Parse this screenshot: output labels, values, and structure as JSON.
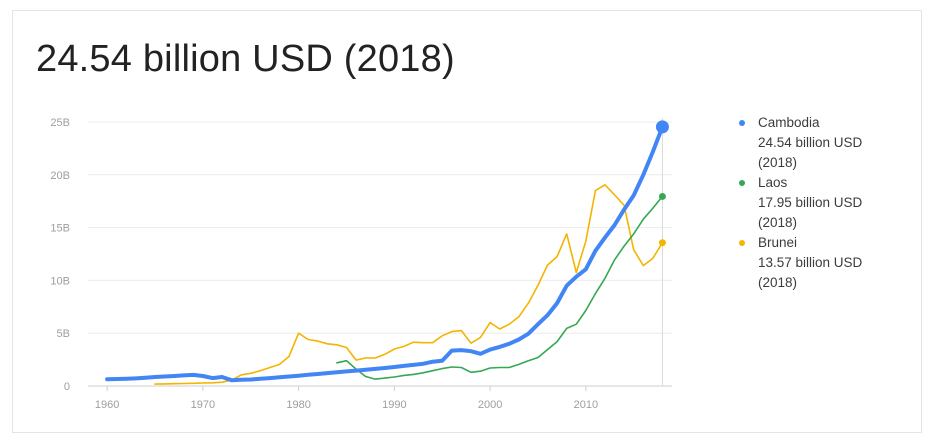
{
  "headline": "24.54 billion USD (2018)",
  "chart_data": {
    "type": "line",
    "xlim": [
      1958,
      2019
    ],
    "ylim": [
      0,
      25
    ],
    "y_unit": "billion USD",
    "grid": true,
    "legend_position": "right",
    "x_ticks": [
      1960,
      1970,
      1980,
      1990,
      2000,
      2010
    ],
    "x_tick_labels": [
      "1960",
      "1970",
      "1980",
      "1990",
      "2000",
      "2010"
    ],
    "y_ticks": [
      0,
      5,
      10,
      15,
      20,
      25
    ],
    "y_tick_labels": [
      "0",
      "5B",
      "10B",
      "15B",
      "20B",
      "25B"
    ],
    "highlight_x": 2018,
    "series": [
      {
        "name": "Cambodia",
        "color": "#4285f4",
        "legend_value": "24.54 billion USD",
        "legend_year": "(2018)",
        "x": [
          1960,
          1961,
          1962,
          1963,
          1964,
          1965,
          1966,
          1967,
          1968,
          1969,
          1970,
          1971,
          1972,
          1973,
          1974,
          1975,
          1976,
          1977,
          1978,
          1979,
          1980,
          1981,
          1982,
          1983,
          1984,
          1985,
          1986,
          1987,
          1988,
          1989,
          1990,
          1991,
          1992,
          1993,
          1994,
          1995,
          1996,
          1997,
          1998,
          1999,
          2000,
          2001,
          2002,
          2003,
          2004,
          2005,
          2006,
          2007,
          2008,
          2009,
          2010,
          2011,
          2012,
          2013,
          2014,
          2015,
          2016,
          2017,
          2018
        ],
        "values": [
          0.64,
          0.66,
          0.68,
          0.72,
          0.78,
          0.85,
          0.9,
          0.95,
          1.0,
          1.05,
          0.95,
          0.75,
          0.85,
          0.55,
          0.6,
          0.62,
          0.68,
          0.75,
          0.82,
          0.9,
          0.98,
          1.06,
          1.14,
          1.22,
          1.3,
          1.38,
          1.46,
          1.54,
          1.62,
          1.7,
          1.8,
          1.9,
          2.0,
          2.1,
          2.3,
          2.4,
          3.35,
          3.4,
          3.3,
          3.05,
          3.45,
          3.7,
          4.0,
          4.4,
          4.95,
          5.85,
          6.7,
          7.85,
          9.5,
          10.35,
          11.05,
          12.8,
          14.05,
          15.25,
          16.7,
          18.05,
          20.0,
          22.2,
          24.54
        ]
      },
      {
        "name": "Laos",
        "color": "#34a853",
        "legend_value": "17.95 billion USD",
        "legend_year": "(2018)",
        "x": [
          1984,
          1985,
          1986,
          1987,
          1988,
          1989,
          1990,
          1991,
          1992,
          1993,
          1994,
          1995,
          1996,
          1997,
          1998,
          1999,
          2000,
          2001,
          2002,
          2003,
          2004,
          2005,
          2006,
          2007,
          2008,
          2009,
          2010,
          2011,
          2012,
          2013,
          2014,
          2015,
          2016,
          2017,
          2018
        ],
        "values": [
          2.2,
          2.4,
          1.6,
          0.9,
          0.65,
          0.75,
          0.85,
          1.0,
          1.1,
          1.25,
          1.45,
          1.65,
          1.8,
          1.75,
          1.3,
          1.4,
          1.7,
          1.75,
          1.75,
          2.05,
          2.4,
          2.7,
          3.45,
          4.2,
          5.45,
          5.85,
          7.15,
          8.75,
          10.2,
          11.95,
          13.25,
          14.4,
          15.8,
          16.85,
          17.95
        ]
      },
      {
        "name": "Brunei",
        "color": "#f4b400",
        "legend_value": "13.57 billion USD",
        "legend_year": "(2018)",
        "x": [
          1965,
          1966,
          1967,
          1968,
          1969,
          1970,
          1971,
          1972,
          1973,
          1974,
          1975,
          1976,
          1977,
          1978,
          1979,
          1980,
          1981,
          1982,
          1983,
          1984,
          1985,
          1986,
          1987,
          1988,
          1989,
          1990,
          1991,
          1992,
          1993,
          1994,
          1995,
          1996,
          1997,
          1998,
          1999,
          2000,
          2001,
          2002,
          2003,
          2004,
          2005,
          2006,
          2007,
          2008,
          2009,
          2010,
          2011,
          2012,
          2013,
          2014,
          2015,
          2016,
          2017,
          2018
        ],
        "values": [
          0.18,
          0.2,
          0.22,
          0.24,
          0.26,
          0.28,
          0.3,
          0.36,
          0.55,
          1.05,
          1.2,
          1.45,
          1.75,
          2.05,
          2.8,
          5.0,
          4.4,
          4.25,
          4.0,
          3.9,
          3.65,
          2.45,
          2.65,
          2.65,
          3.0,
          3.5,
          3.75,
          4.15,
          4.1,
          4.1,
          4.75,
          5.15,
          5.25,
          4.05,
          4.6,
          6.0,
          5.4,
          5.85,
          6.55,
          7.85,
          9.55,
          11.45,
          12.25,
          14.4,
          10.75,
          13.7,
          18.5,
          19.05,
          18.1,
          17.1,
          12.9,
          11.4,
          12.1,
          13.57
        ]
      }
    ]
  }
}
